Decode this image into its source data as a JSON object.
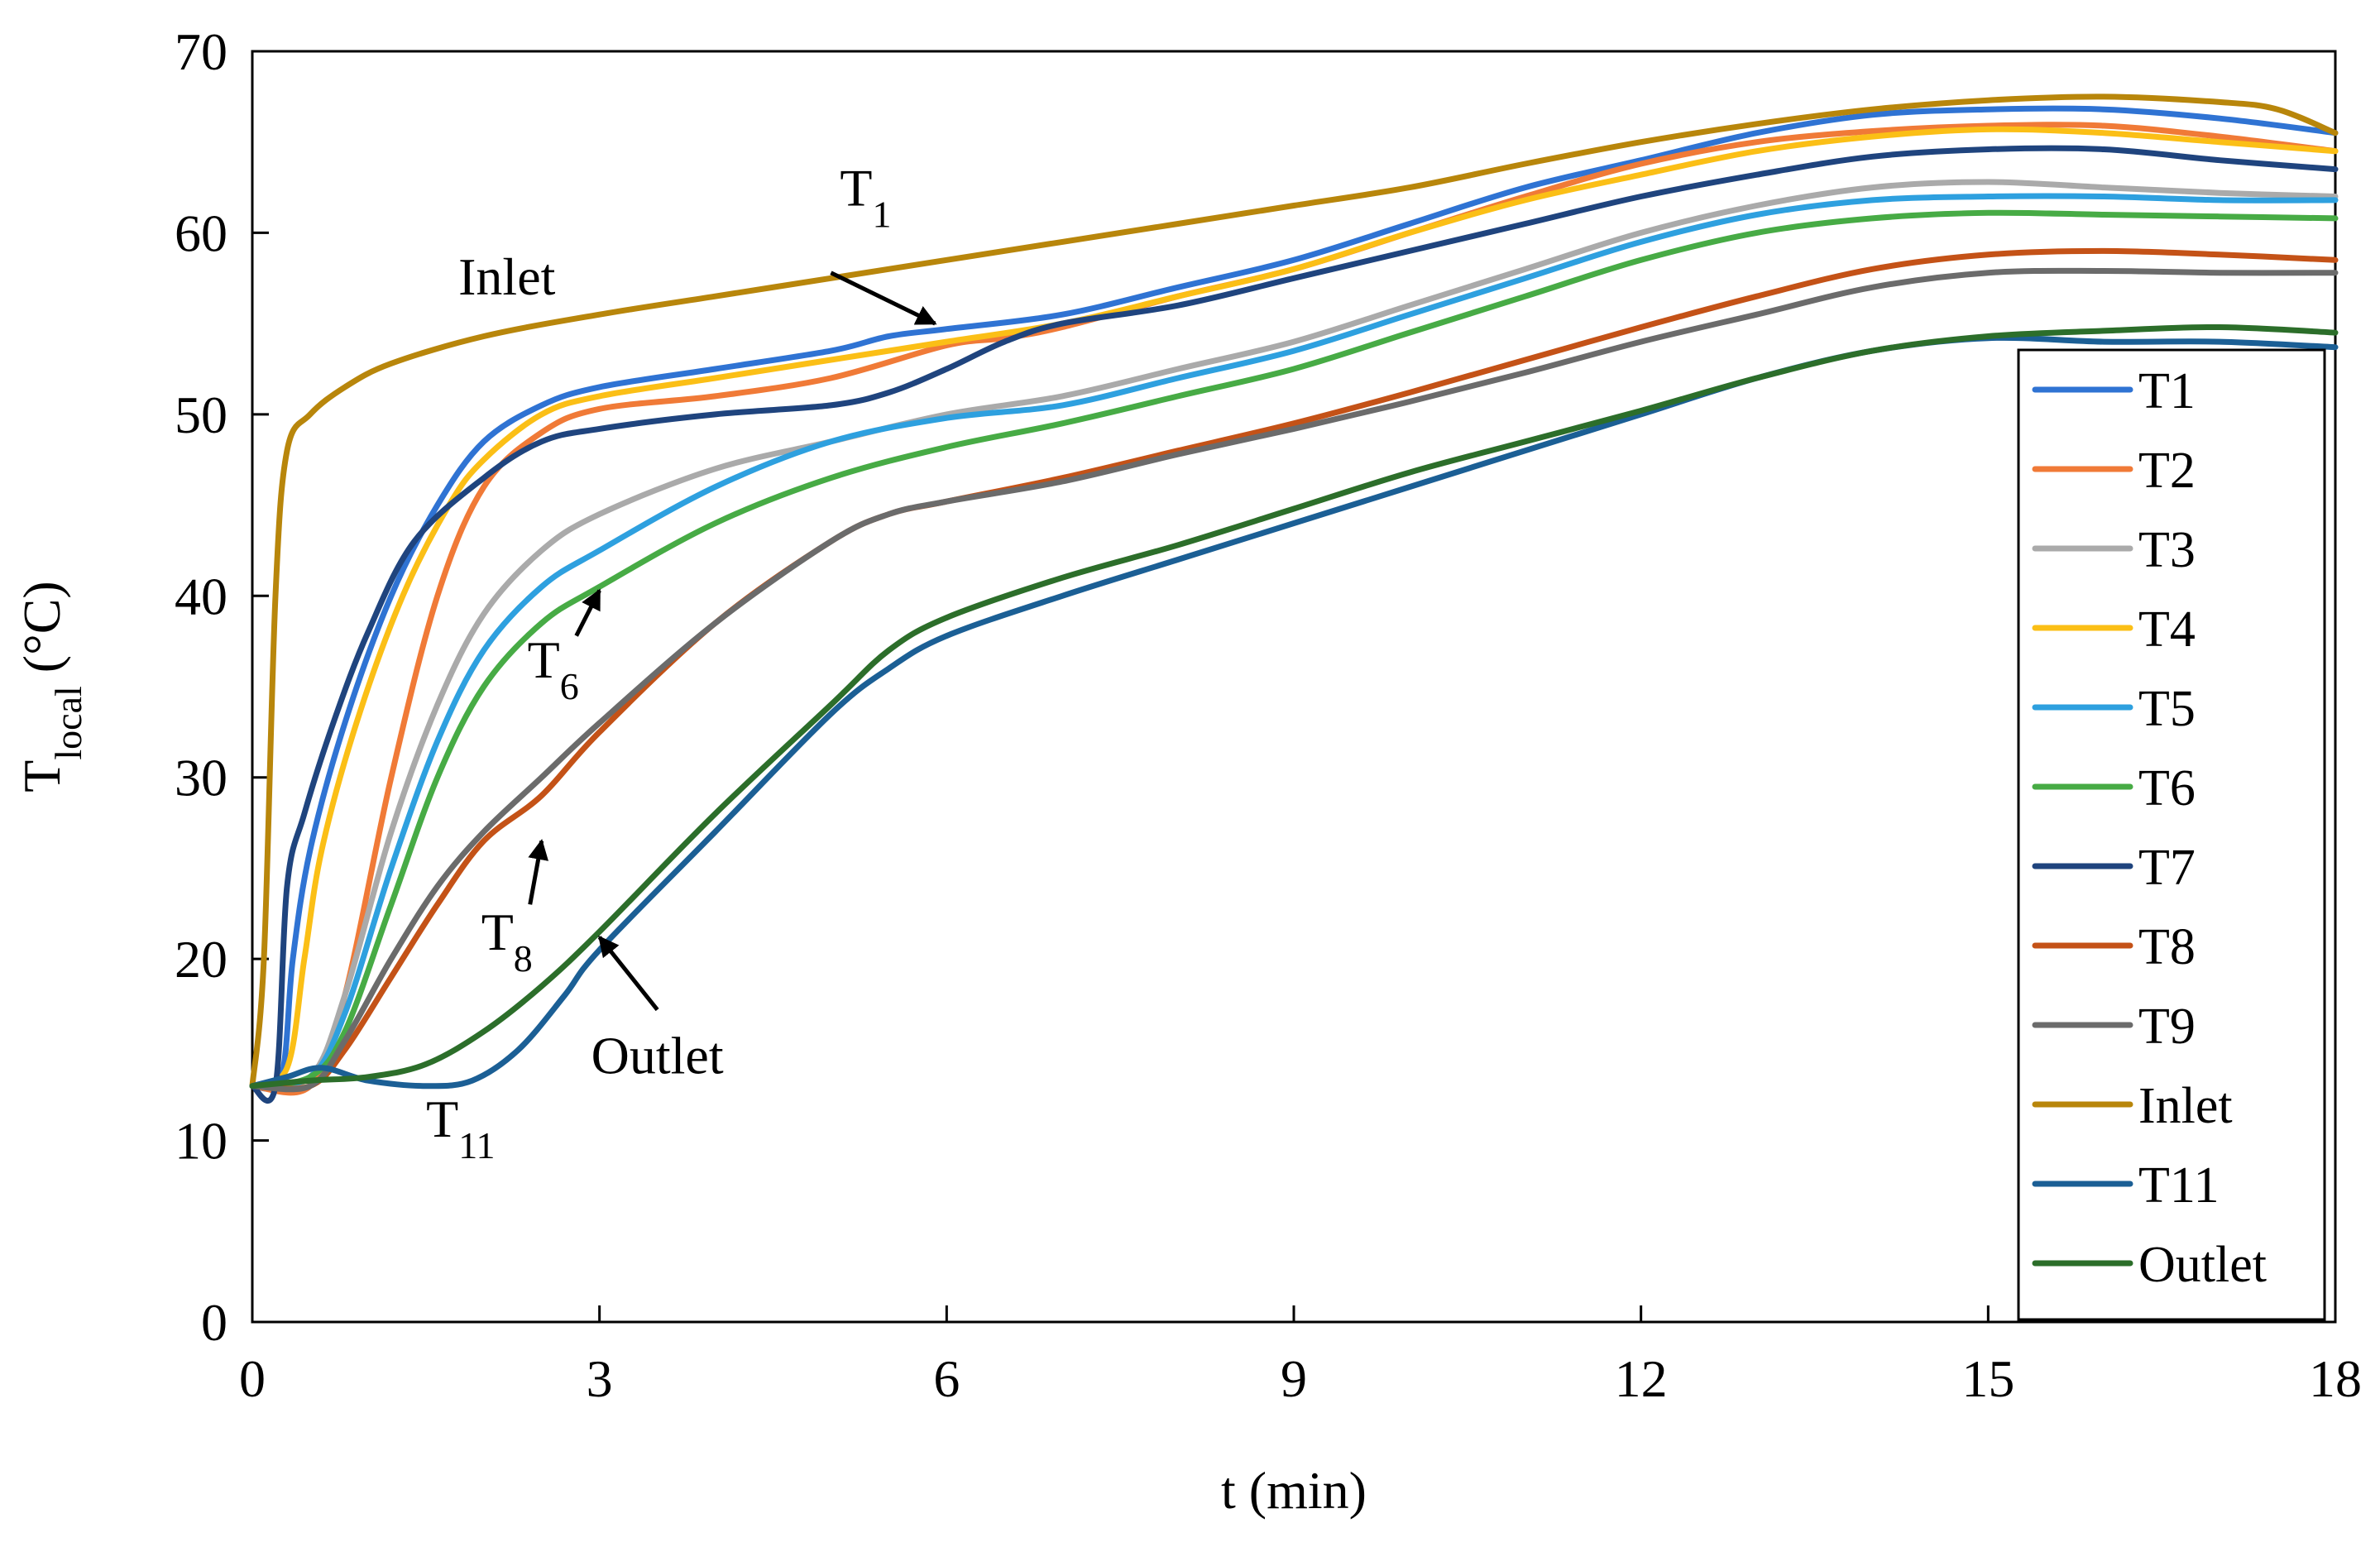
{
  "chart_data": {
    "type": "line",
    "title": "",
    "xlabel": "t (min)",
    "ylabel": {
      "main": "T",
      "sub": "local",
      "unit": " (°C)"
    },
    "xlim": [
      0,
      18
    ],
    "ylim": [
      0,
      70
    ],
    "xticks": [
      "0",
      "3",
      "6",
      "9",
      "12",
      "15",
      "18"
    ],
    "yticks": [
      "0",
      "10",
      "20",
      "30",
      "40",
      "50",
      "60",
      "70"
    ],
    "grid": false,
    "legend_position": "right",
    "series": [
      {
        "name": "T1",
        "color": "#2f73d3",
        "points": [
          [
            0,
            13
          ],
          [
            0.25,
            13.5
          ],
          [
            0.35,
            20
          ],
          [
            0.5,
            26
          ],
          [
            0.8,
            33
          ],
          [
            1.2,
            40
          ],
          [
            1.6,
            45
          ],
          [
            2,
            48.5
          ],
          [
            2.5,
            50.5
          ],
          [
            3,
            51.5
          ],
          [
            4,
            52.5
          ],
          [
            5,
            53.5
          ],
          [
            5.5,
            54.3
          ],
          [
            6,
            54.7
          ],
          [
            7,
            55.5
          ],
          [
            8,
            57
          ],
          [
            9,
            58.5
          ],
          [
            10,
            60.5
          ],
          [
            11,
            62.5
          ],
          [
            12,
            64
          ],
          [
            13,
            65.5
          ],
          [
            14,
            66.5
          ],
          [
            15,
            66.8
          ],
          [
            16,
            66.8
          ],
          [
            17,
            66.3
          ],
          [
            18,
            65.5
          ]
        ]
      },
      {
        "name": "T2",
        "color": "#f07a37",
        "points": [
          [
            0,
            13
          ],
          [
            0.5,
            13
          ],
          [
            0.8,
            18
          ],
          [
            1.2,
            30
          ],
          [
            1.6,
            40
          ],
          [
            2,
            46
          ],
          [
            2.5,
            49
          ],
          [
            3,
            50.3
          ],
          [
            4,
            51
          ],
          [
            5,
            52
          ],
          [
            6,
            53.8
          ],
          [
            6.5,
            54.2
          ],
          [
            7,
            54.8
          ],
          [
            8,
            56.5
          ],
          [
            9,
            58
          ],
          [
            10,
            60
          ],
          [
            11,
            62
          ],
          [
            12,
            63.8
          ],
          [
            13,
            65
          ],
          [
            14,
            65.6
          ],
          [
            15,
            65.9
          ],
          [
            16,
            65.9
          ],
          [
            17,
            65.3
          ],
          [
            18,
            64.5
          ]
        ]
      },
      {
        "name": "T3",
        "color": "#aaaaaa",
        "points": [
          [
            0,
            13
          ],
          [
            0.5,
            13.5
          ],
          [
            0.8,
            18
          ],
          [
            1.2,
            27
          ],
          [
            1.6,
            34
          ],
          [
            2,
            39
          ],
          [
            2.5,
            42.5
          ],
          [
            3,
            44.5
          ],
          [
            4,
            47
          ],
          [
            5,
            48.5
          ],
          [
            6,
            50
          ],
          [
            7,
            51
          ],
          [
            8,
            52.5
          ],
          [
            9,
            54
          ],
          [
            10,
            56
          ],
          [
            11,
            58
          ],
          [
            12,
            60
          ],
          [
            13,
            61.5
          ],
          [
            14,
            62.5
          ],
          [
            15,
            62.8
          ],
          [
            16,
            62.5
          ],
          [
            17,
            62.2
          ],
          [
            18,
            62
          ]
        ]
      },
      {
        "name": "T4",
        "color": "#fbbf16",
        "points": [
          [
            0,
            13
          ],
          [
            0.3,
            14
          ],
          [
            0.45,
            20
          ],
          [
            0.6,
            26
          ],
          [
            0.9,
            33
          ],
          [
            1.3,
            40
          ],
          [
            1.7,
            45
          ],
          [
            2,
            47.5
          ],
          [
            2.5,
            50
          ],
          [
            3,
            51
          ],
          [
            4,
            52
          ],
          [
            5,
            53
          ],
          [
            6,
            54
          ],
          [
            7,
            55
          ],
          [
            8,
            56.5
          ],
          [
            9,
            58
          ],
          [
            10,
            60
          ],
          [
            11,
            61.8
          ],
          [
            12,
            63.2
          ],
          [
            13,
            64.5
          ],
          [
            14,
            65.3
          ],
          [
            15,
            65.7
          ],
          [
            16,
            65.5
          ],
          [
            17,
            65
          ],
          [
            18,
            64.5
          ]
        ]
      },
      {
        "name": "T5",
        "color": "#2ea0df",
        "points": [
          [
            0,
            13
          ],
          [
            0.5,
            13.5
          ],
          [
            0.8,
            17
          ],
          [
            1.2,
            25
          ],
          [
            1.6,
            32
          ],
          [
            2,
            37
          ],
          [
            2.5,
            40.5
          ],
          [
            3,
            42.5
          ],
          [
            4,
            46
          ],
          [
            5,
            48.5
          ],
          [
            6,
            49.8
          ],
          [
            7,
            50.5
          ],
          [
            8,
            52
          ],
          [
            9,
            53.5
          ],
          [
            10,
            55.5
          ],
          [
            11,
            57.5
          ],
          [
            12,
            59.5
          ],
          [
            13,
            61
          ],
          [
            14,
            61.8
          ],
          [
            15,
            62
          ],
          [
            16,
            62
          ],
          [
            17,
            61.8
          ],
          [
            18,
            61.8
          ]
        ]
      },
      {
        "name": "T6",
        "color": "#47ab45",
        "points": [
          [
            0,
            13
          ],
          [
            0.5,
            13.5
          ],
          [
            0.8,
            16
          ],
          [
            1.2,
            23
          ],
          [
            1.6,
            30
          ],
          [
            2,
            35
          ],
          [
            2.5,
            38.5
          ],
          [
            3,
            40.5
          ],
          [
            4,
            44
          ],
          [
            5,
            46.5
          ],
          [
            6,
            48.2
          ],
          [
            7,
            49.5
          ],
          [
            8,
            51
          ],
          [
            9,
            52.5
          ],
          [
            10,
            54.5
          ],
          [
            11,
            56.5
          ],
          [
            12,
            58.5
          ],
          [
            13,
            60
          ],
          [
            14,
            60.8
          ],
          [
            15,
            61.1
          ],
          [
            16,
            61
          ],
          [
            17,
            60.9
          ],
          [
            18,
            60.8
          ]
        ]
      },
      {
        "name": "T7",
        "color": "#1f447e",
        "points": [
          [
            0,
            13
          ],
          [
            0.2,
            13
          ],
          [
            0.3,
            24
          ],
          [
            0.45,
            28
          ],
          [
            0.7,
            33
          ],
          [
            1,
            38
          ],
          [
            1.4,
            43
          ],
          [
            2,
            46.5
          ],
          [
            2.5,
            48.5
          ],
          [
            3,
            49.2
          ],
          [
            4,
            50
          ],
          [
            5,
            50.5
          ],
          [
            5.5,
            51.2
          ],
          [
            6,
            52.5
          ],
          [
            6.5,
            54
          ],
          [
            7,
            55
          ],
          [
            8,
            56
          ],
          [
            9,
            57.5
          ],
          [
            10,
            59
          ],
          [
            11,
            60.5
          ],
          [
            12,
            62
          ],
          [
            13,
            63.2
          ],
          [
            14,
            64.2
          ],
          [
            15,
            64.6
          ],
          [
            16,
            64.6
          ],
          [
            17,
            64
          ],
          [
            18,
            63.5
          ]
        ]
      },
      {
        "name": "T8",
        "color": "#c45217",
        "points": [
          [
            0,
            13
          ],
          [
            0.5,
            13
          ],
          [
            0.8,
            15
          ],
          [
            1.2,
            19
          ],
          [
            1.6,
            23
          ],
          [
            2,
            26.5
          ],
          [
            2.5,
            29
          ],
          [
            3,
            32.5
          ],
          [
            4,
            38.5
          ],
          [
            5,
            43
          ],
          [
            5.5,
            44.5
          ],
          [
            6,
            45.2
          ],
          [
            7,
            46.5
          ],
          [
            8,
            48
          ],
          [
            9,
            49.5
          ],
          [
            10,
            51.2
          ],
          [
            11,
            53
          ],
          [
            12,
            54.8
          ],
          [
            13,
            56.5
          ],
          [
            14,
            58
          ],
          [
            15,
            58.8
          ],
          [
            16,
            59
          ],
          [
            17,
            58.8
          ],
          [
            18,
            58.5
          ]
        ]
      },
      {
        "name": "T9",
        "color": "#6b6b6b",
        "points": [
          [
            0,
            13
          ],
          [
            0.5,
            13
          ],
          [
            0.8,
            15.5
          ],
          [
            1.2,
            20
          ],
          [
            1.6,
            24
          ],
          [
            2,
            27
          ],
          [
            2.5,
            30
          ],
          [
            3,
            33
          ],
          [
            4,
            38.5
          ],
          [
            5,
            43
          ],
          [
            5.5,
            44.5
          ],
          [
            6,
            45.2
          ],
          [
            7,
            46.3
          ],
          [
            8,
            47.8
          ],
          [
            9,
            49.2
          ],
          [
            10,
            50.7
          ],
          [
            11,
            52.3
          ],
          [
            12,
            54
          ],
          [
            13,
            55.5
          ],
          [
            14,
            57
          ],
          [
            15,
            57.8
          ],
          [
            16,
            57.9
          ],
          [
            17,
            57.8
          ],
          [
            18,
            57.8
          ]
        ]
      },
      {
        "name": "Inlet",
        "color": "#b8860b",
        "points": [
          [
            0,
            13
          ],
          [
            0.1,
            20
          ],
          [
            0.2,
            40
          ],
          [
            0.3,
            48
          ],
          [
            0.5,
            50
          ],
          [
            0.8,
            51.5
          ],
          [
            1.2,
            52.8
          ],
          [
            2,
            54.3
          ],
          [
            3,
            55.5
          ],
          [
            4,
            56.5
          ],
          [
            5,
            57.5
          ],
          [
            6,
            58.5
          ],
          [
            7,
            59.5
          ],
          [
            8,
            60.5
          ],
          [
            9,
            61.5
          ],
          [
            10,
            62.5
          ],
          [
            11,
            63.8
          ],
          [
            12,
            65
          ],
          [
            13,
            66
          ],
          [
            14,
            66.8
          ],
          [
            15,
            67.3
          ],
          [
            16,
            67.5
          ],
          [
            17,
            67.2
          ],
          [
            17.5,
            66.8
          ],
          [
            18,
            65.5
          ]
        ]
      },
      {
        "name": "T11",
        "color": "#1b5f95",
        "points": [
          [
            0,
            13
          ],
          [
            0.3,
            13.5
          ],
          [
            0.6,
            14
          ],
          [
            1,
            13.3
          ],
          [
            1.5,
            13
          ],
          [
            1.9,
            13.3
          ],
          [
            2.3,
            15
          ],
          [
            2.7,
            18
          ],
          [
            3,
            20.5
          ],
          [
            4,
            27
          ],
          [
            5,
            33.5
          ],
          [
            5.5,
            36
          ],
          [
            6,
            37.8
          ],
          [
            7,
            40
          ],
          [
            8,
            42
          ],
          [
            9,
            44
          ],
          [
            10,
            46
          ],
          [
            11,
            48
          ],
          [
            12,
            50
          ],
          [
            13,
            52
          ],
          [
            14,
            53.5
          ],
          [
            15,
            54.2
          ],
          [
            16,
            54
          ],
          [
            17,
            54
          ],
          [
            18,
            53.7
          ]
        ]
      },
      {
        "name": "Outlet",
        "color": "#2c6e2a",
        "points": [
          [
            0,
            13
          ],
          [
            0.5,
            13.3
          ],
          [
            1,
            13.5
          ],
          [
            1.5,
            14.2
          ],
          [
            2,
            16
          ],
          [
            2.5,
            18.5
          ],
          [
            3,
            21.5
          ],
          [
            4,
            28
          ],
          [
            5,
            34
          ],
          [
            5.5,
            37
          ],
          [
            6,
            38.8
          ],
          [
            7,
            41
          ],
          [
            8,
            42.8
          ],
          [
            9,
            44.8
          ],
          [
            10,
            46.8
          ],
          [
            11,
            48.5
          ],
          [
            12,
            50.2
          ],
          [
            13,
            52
          ],
          [
            14,
            53.5
          ],
          [
            15,
            54.3
          ],
          [
            16,
            54.6
          ],
          [
            17,
            54.8
          ],
          [
            18,
            54.5
          ]
        ]
      }
    ],
    "annotations": [
      {
        "label": "Inlet",
        "sub": "",
        "x": 2.2,
        "y": 56.6,
        "anchor": "middle",
        "arrow_from": null,
        "arrow_to": null
      },
      {
        "label": "T",
        "sub": "1",
        "x": 5.3,
        "y": 61.5,
        "anchor": "middle",
        "arrow_from": [
          5.0,
          57.8
        ],
        "arrow_to": [
          5.9,
          55.0
        ]
      },
      {
        "label": "T",
        "sub": "6",
        "x": 2.6,
        "y": 35.5,
        "anchor": "middle",
        "arrow_from": [
          2.8,
          37.8
        ],
        "arrow_to": [
          3.0,
          40.3
        ]
      },
      {
        "label": "T",
        "sub": "8",
        "x": 2.2,
        "y": 20.5,
        "anchor": "middle",
        "arrow_from": [
          2.4,
          23.0
        ],
        "arrow_to": [
          2.5,
          26.5
        ]
      },
      {
        "label": "Outlet",
        "sub": "",
        "x": 3.5,
        "y": 13.7,
        "anchor": "middle",
        "arrow_from": [
          3.5,
          17.2
        ],
        "arrow_to": [
          3.0,
          21.2
        ]
      },
      {
        "label": "T",
        "sub": "11",
        "x": 1.8,
        "y": 10.2,
        "anchor": "middle",
        "arrow_from": null,
        "arrow_to": null
      }
    ]
  }
}
